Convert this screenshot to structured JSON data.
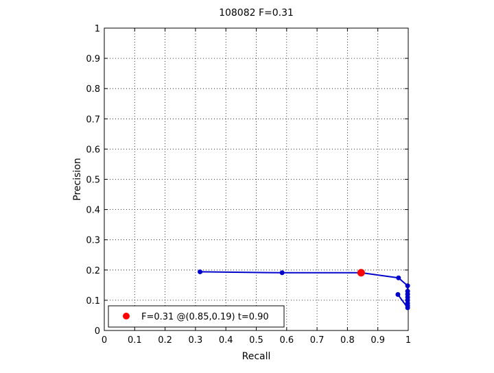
{
  "chart_data": {
    "type": "line",
    "title": "108082 F=0.31",
    "xlabel": "Recall",
    "ylabel": "Precision",
    "xlim": [
      0,
      1
    ],
    "ylim": [
      0,
      1
    ],
    "x_ticks": [
      "0",
      "0.1",
      "0.2",
      "0.3",
      "0.4",
      "0.5",
      "0.6",
      "0.7",
      "0.8",
      "0.9",
      "1"
    ],
    "y_ticks": [
      "0",
      "0.1",
      "0.2",
      "0.3",
      "0.4",
      "0.5",
      "0.6",
      "0.7",
      "0.8",
      "0.9",
      "1"
    ],
    "grid": true,
    "legend_position": "bottom-left",
    "series": [
      {
        "color": "#0000cc",
        "points": [
          {
            "x": 0.315,
            "y": 0.194
          },
          {
            "x": 0.585,
            "y": 0.191
          },
          {
            "x": 0.845,
            "y": 0.191
          },
          {
            "x": 0.968,
            "y": 0.174
          },
          {
            "x": 0.998,
            "y": 0.148
          },
          {
            "x": 0.998,
            "y": 0.13
          },
          {
            "x": 0.998,
            "y": 0.12
          },
          {
            "x": 0.998,
            "y": 0.11
          },
          {
            "x": 0.998,
            "y": 0.1
          },
          {
            "x": 0.998,
            "y": 0.09
          },
          {
            "x": 0.998,
            "y": 0.082
          },
          {
            "x": 0.998,
            "y": 0.075
          },
          {
            "x": 0.966,
            "y": 0.119
          }
        ]
      }
    ],
    "best_point": {
      "x": 0.845,
      "y": 0.191,
      "color": "#ff0000"
    },
    "legend": {
      "label": "F=0.31 @(0.85,0.19) t=0.90",
      "marker_color": "#ff0000"
    }
  }
}
